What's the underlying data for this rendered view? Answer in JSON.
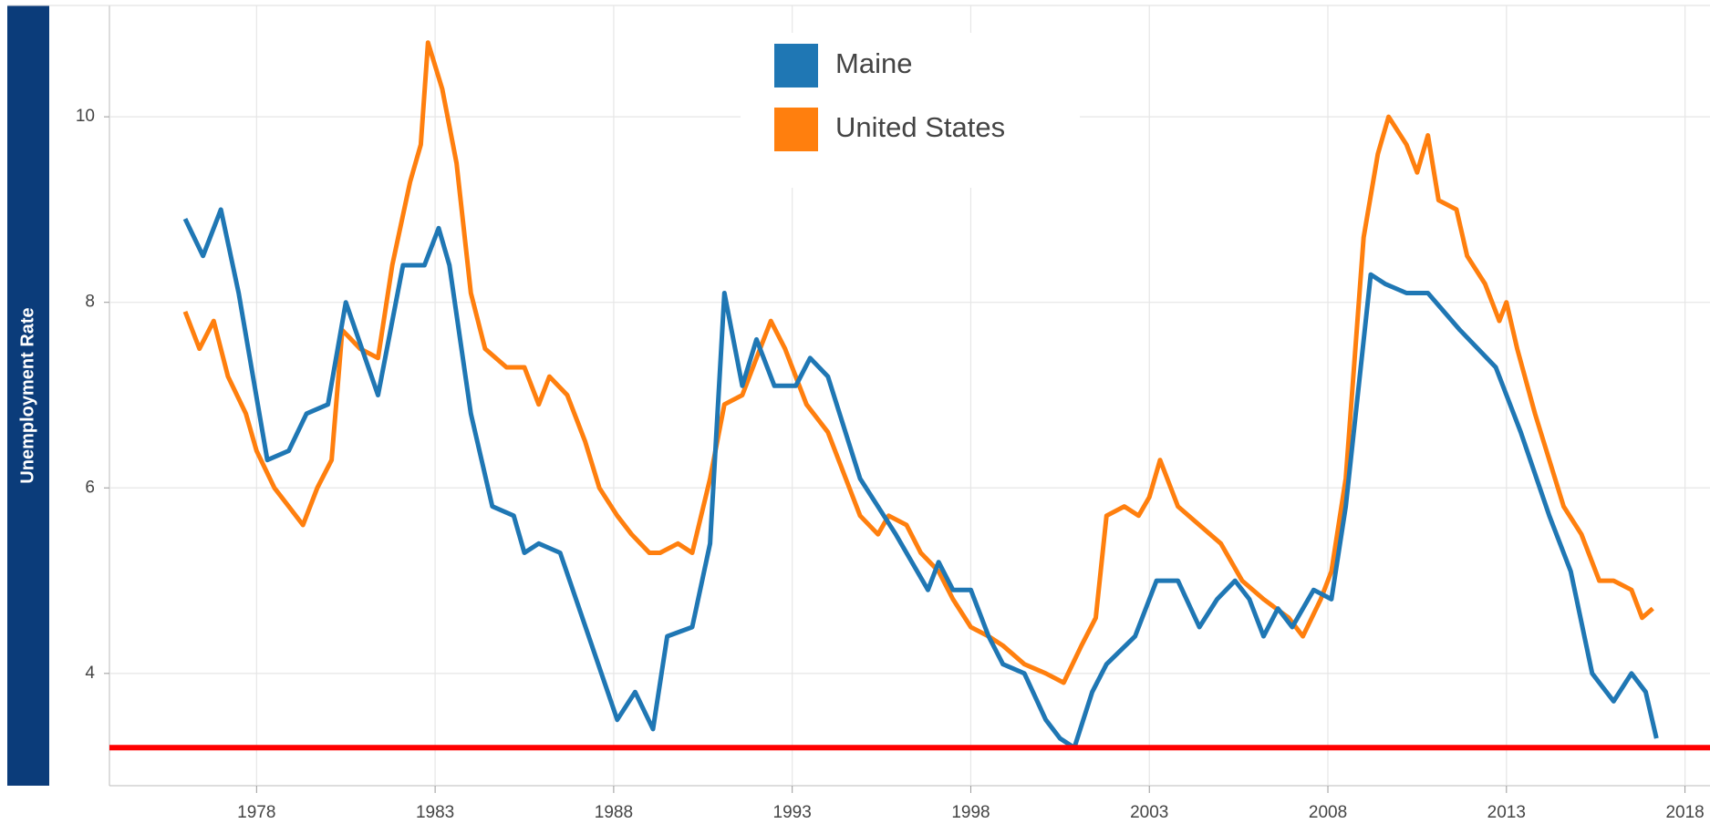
{
  "chart_data": {
    "type": "line",
    "y_label": "Unemployment Rate",
    "xlim": [
      1973.88,
      2018.7
    ],
    "ylim": [
      2.79,
      11.2
    ],
    "xticks": [
      1978,
      1983,
      1988,
      1993,
      1998,
      2003,
      2008,
      2013,
      2018
    ],
    "yticks": [
      4,
      6,
      8,
      10
    ],
    "grid": true,
    "reference_line": {
      "value": 3.2,
      "color": "#ff0000"
    },
    "series": [
      {
        "name": "Maine",
        "color": "#1f77b4",
        "x": [
          1976.0,
          1976.5,
          1977.0,
          1977.5,
          1978.3,
          1978.9,
          1979.4,
          1980.0,
          1980.5,
          1981.4,
          1982.1,
          1982.7,
          1983.1,
          1983.4,
          1984.0,
          1984.6,
          1985.2,
          1985.5,
          1985.9,
          1986.5,
          1987.3,
          1988.1,
          1988.6,
          1989.1,
          1989.5,
          1990.2,
          1990.7,
          1991.1,
          1991.6,
          1992.0,
          1992.5,
          1993.1,
          1993.5,
          1994.0,
          1994.9,
          1995.9,
          1996.8,
          1997.1,
          1997.5,
          1998.0,
          1998.5,
          1998.9,
          1999.5,
          2000.1,
          2000.5,
          2000.9,
          2001.4,
          2001.8,
          2002.6,
          2003.2,
          2003.8,
          2004.4,
          2004.9,
          2005.4,
          2005.8,
          2006.2,
          2006.6,
          2007.0,
          2007.6,
          2008.1,
          2008.5,
          2009.2,
          2009.6,
          2010.2,
          2010.8,
          2011.7,
          2012.7,
          2013.4,
          2014.2,
          2014.8,
          2015.4,
          2016.0,
          2016.5,
          2016.9,
          2017.2
        ],
        "values": [
          8.9,
          8.5,
          9.0,
          8.1,
          6.3,
          6.4,
          6.8,
          6.9,
          8.0,
          7.0,
          8.4,
          8.4,
          8.8,
          8.4,
          6.8,
          5.8,
          5.7,
          5.3,
          5.4,
          5.3,
          4.4,
          3.5,
          3.8,
          3.4,
          4.4,
          4.5,
          5.4,
          8.1,
          7.1,
          7.6,
          7.1,
          7.1,
          7.4,
          7.2,
          6.1,
          5.5,
          4.9,
          5.2,
          4.9,
          4.9,
          4.4,
          4.1,
          4.0,
          3.5,
          3.3,
          3.2,
          3.8,
          4.1,
          4.4,
          5.0,
          5.0,
          4.5,
          4.8,
          5.0,
          4.8,
          4.4,
          4.7,
          4.5,
          4.9,
          4.8,
          5.8,
          8.3,
          8.2,
          8.1,
          8.1,
          7.7,
          7.3,
          6.6,
          5.7,
          5.1,
          4.0,
          3.7,
          4.0,
          3.8,
          3.3
        ]
      },
      {
        "name": "United States",
        "color": "#ff7f0e",
        "x": [
          1976.0,
          1976.4,
          1976.8,
          1977.2,
          1977.7,
          1978.0,
          1978.5,
          1978.9,
          1979.3,
          1979.7,
          1980.1,
          1980.4,
          1980.9,
          1981.4,
          1981.8,
          1982.3,
          1982.6,
          1982.8,
          1983.2,
          1983.6,
          1984.0,
          1984.4,
          1985.0,
          1985.5,
          1985.9,
          1986.2,
          1986.7,
          1987.2,
          1987.6,
          1988.1,
          1988.5,
          1989.0,
          1989.3,
          1989.8,
          1990.2,
          1990.7,
          1991.1,
          1991.6,
          1991.9,
          1992.4,
          1992.8,
          1993.4,
          1994.0,
          1994.5,
          1994.9,
          1995.4,
          1995.7,
          1996.2,
          1996.6,
          1997.1,
          1997.5,
          1998.0,
          1998.5,
          1998.9,
          1999.5,
          2000.1,
          2000.6,
          2001.1,
          2001.5,
          2001.8,
          2002.3,
          2002.7,
          2003.0,
          2003.3,
          2003.8,
          2004.4,
          2005.0,
          2005.6,
          2006.2,
          2006.9,
          2007.3,
          2007.8,
          2008.1,
          2008.5,
          2009.0,
          2009.4,
          2009.7,
          2010.2,
          2010.5,
          2010.8,
          2011.1,
          2011.6,
          2011.9,
          2012.4,
          2012.8,
          2013.0,
          2013.3,
          2013.8,
          2014.2,
          2014.6,
          2015.1,
          2015.6,
          2016.0,
          2016.5,
          2016.8,
          2017.1
        ],
        "values": [
          7.9,
          7.5,
          7.8,
          7.2,
          6.8,
          6.4,
          6.0,
          5.8,
          5.6,
          6.0,
          6.3,
          7.7,
          7.5,
          7.4,
          8.4,
          9.3,
          9.7,
          10.8,
          10.3,
          9.5,
          8.1,
          7.5,
          7.3,
          7.3,
          6.9,
          7.2,
          7.0,
          6.5,
          6.0,
          5.7,
          5.5,
          5.3,
          5.3,
          5.4,
          5.3,
          6.1,
          6.9,
          7.0,
          7.3,
          7.8,
          7.5,
          6.9,
          6.6,
          6.1,
          5.7,
          5.5,
          5.7,
          5.6,
          5.3,
          5.1,
          4.8,
          4.5,
          4.4,
          4.3,
          4.1,
          4.0,
          3.9,
          4.3,
          4.6,
          5.7,
          5.8,
          5.7,
          5.9,
          6.3,
          5.8,
          5.6,
          5.4,
          5.0,
          4.8,
          4.6,
          4.4,
          4.8,
          5.1,
          6.1,
          8.7,
          9.6,
          10.0,
          9.7,
          9.4,
          9.8,
          9.1,
          9.0,
          8.5,
          8.2,
          7.8,
          8.0,
          7.5,
          6.8,
          6.3,
          5.8,
          5.5,
          5.0,
          5.0,
          4.9,
          4.6,
          4.7
        ]
      }
    ]
  }
}
